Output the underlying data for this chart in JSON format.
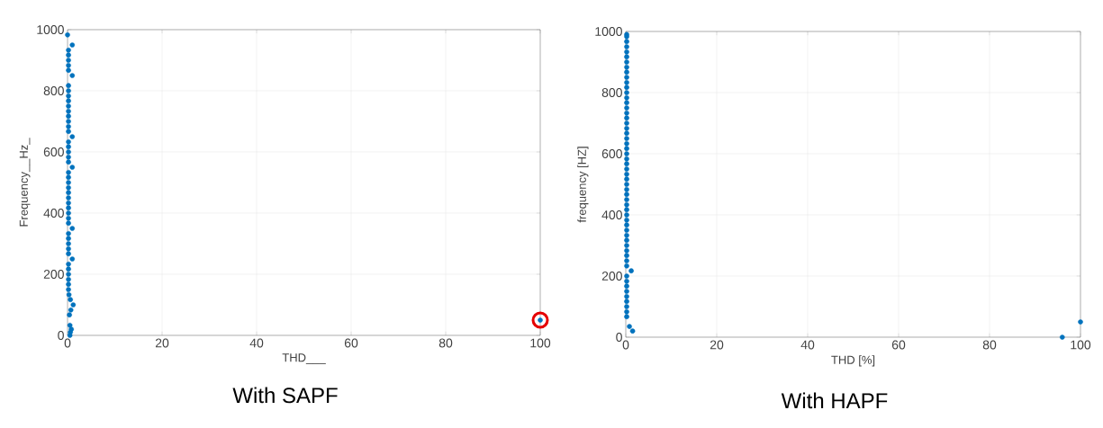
{
  "chart_data": [
    {
      "type": "scatter",
      "title": "With SAPF",
      "xlabel": "THD___",
      "ylabel": "Frequency__Hz_",
      "xlim": [
        0,
        100
      ],
      "ylim": [
        0,
        1000
      ],
      "xticks": [
        0,
        20,
        40,
        60,
        80,
        100
      ],
      "yticks": [
        0,
        200,
        400,
        600,
        800,
        1000
      ],
      "grid": true,
      "marker": "circle",
      "series": [
        {
          "color": "#0072bd",
          "x": [
            0.5,
            0.6,
            0.8,
            0.5,
            100,
            0.4,
            0.7,
            1.2,
            0.6,
            0.3,
            0.2,
            0.2,
            0.2,
            0.2,
            0.2,
            0.2,
            1,
            0.2,
            0.2,
            0.2,
            0.2,
            0.2,
            1,
            0.2,
            0.2,
            0.2,
            0.2,
            0.2,
            0.2,
            0.2,
            0.2,
            0.2,
            0.2,
            0.2,
            1,
            0.2,
            0.2,
            0.2,
            0.2,
            0.2,
            1,
            0.2,
            0.2,
            0.2,
            0.2,
            0.2,
            0.2,
            0.2,
            0.2,
            0.2,
            0.2,
            1,
            0.2,
            0.2,
            0.2,
            0.2,
            0.2,
            1,
            0
          ],
          "values": [
            0,
            10,
            20,
            33,
            50,
            67,
            83,
            100,
            117,
            133,
            150,
            167,
            183,
            200,
            217,
            233,
            250,
            267,
            283,
            300,
            317,
            333,
            350,
            367,
            383,
            400,
            417,
            433,
            450,
            467,
            483,
            500,
            517,
            533,
            550,
            567,
            583,
            600,
            617,
            633,
            650,
            667,
            683,
            700,
            717,
            733,
            750,
            767,
            783,
            800,
            817,
            850,
            867,
            883,
            900,
            917,
            933,
            950,
            983
          ]
        }
      ]
    },
    {
      "type": "scatter",
      "title": "With HAPF",
      "xlabel": "THD [%]",
      "ylabel": "frequency [HZ]",
      "xlim": [
        0,
        100
      ],
      "ylim": [
        0,
        1000
      ],
      "xticks": [
        0,
        20,
        40,
        60,
        80,
        100
      ],
      "yticks": [
        0,
        200,
        400,
        600,
        800,
        1000
      ],
      "grid": true,
      "marker": "circle",
      "series": [
        {
          "color": "#0072bd",
          "x": [
            96,
            1.5,
            0.8,
            100,
            0.2,
            0.2,
            0.2,
            0.2,
            0.2,
            0.2,
            0.2,
            0.2,
            0.2,
            1.2,
            0.2,
            0.2,
            0.2,
            0.2,
            0.2,
            0.2,
            0.2,
            0.2,
            0.2,
            0.2,
            0.2,
            0.2,
            0.2,
            0.2,
            0.2,
            0.2,
            0.2,
            0.2,
            0.2,
            0.2,
            0.2,
            0.2,
            0.2,
            0.2,
            0.2,
            0.2,
            0.2,
            0.2,
            0.2,
            0.2,
            0.2,
            0.2,
            0.2,
            0.2,
            0.2,
            0.2,
            0.2,
            0.2,
            0.2,
            0.2,
            0.2,
            0.2,
            0.2,
            0.2,
            0.2,
            0.2,
            0.2
          ],
          "values": [
            0,
            20,
            35,
            50,
            67,
            83,
            100,
            117,
            133,
            150,
            167,
            183,
            200,
            217,
            233,
            250,
            267,
            283,
            300,
            317,
            333,
            350,
            367,
            383,
            400,
            417,
            433,
            450,
            467,
            483,
            500,
            517,
            533,
            550,
            567,
            583,
            600,
            617,
            633,
            650,
            667,
            683,
            700,
            717,
            733,
            750,
            767,
            783,
            800,
            817,
            833,
            850,
            867,
            883,
            900,
            917,
            933,
            950,
            967,
            983,
            990
          ]
        }
      ]
    }
  ]
}
